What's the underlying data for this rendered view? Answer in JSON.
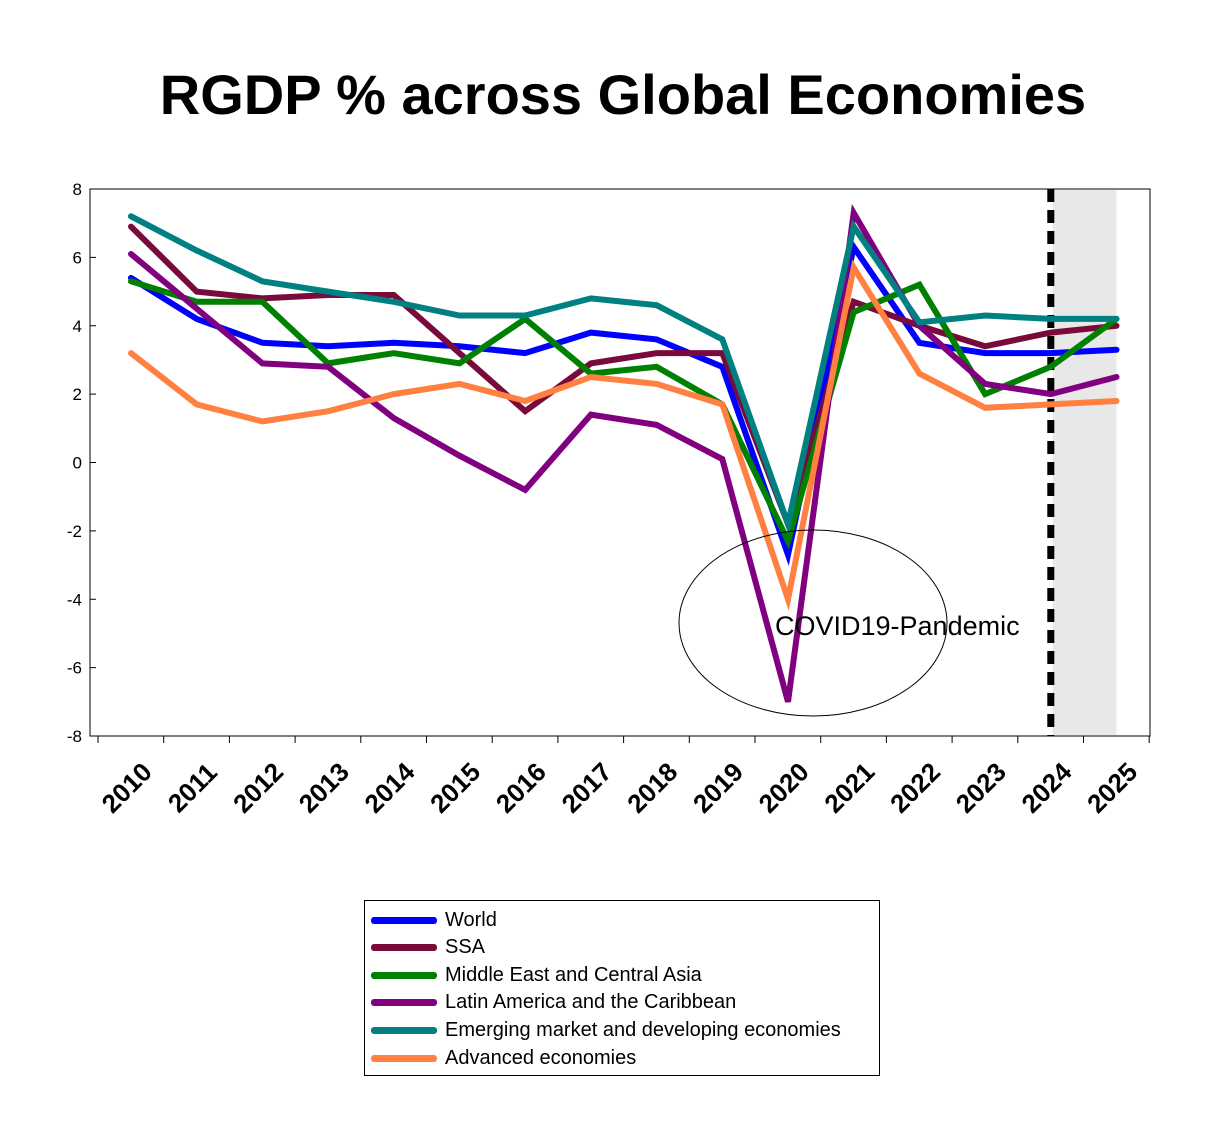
{
  "chart_data": {
    "type": "line",
    "title": "RGDP % across Global Economies",
    "xlabel": "",
    "ylabel": "",
    "x": [
      "2010",
      "2011",
      "2012",
      "2013",
      "2014",
      "2015",
      "2016",
      "2017",
      "2018",
      "2019",
      "2020",
      "2021",
      "2022",
      "2023",
      "2024",
      "2025"
    ],
    "ylim": [
      -8,
      8
    ],
    "yticks": [
      "8",
      "6",
      "4",
      "2",
      "0",
      "-2",
      "-4",
      "-6",
      "-8"
    ],
    "grid": false,
    "legend_position": "bottom",
    "shaded_region": {
      "from": "2024",
      "to": "2025",
      "color": "#e8e8e8"
    },
    "annotation": {
      "text": "COVID19-Pandemic",
      "near": "2020"
    },
    "series": [
      {
        "name": "World",
        "color": "#0000ff",
        "values": [
          5.4,
          4.2,
          3.5,
          3.4,
          3.5,
          3.4,
          3.2,
          3.8,
          3.6,
          2.8,
          -2.7,
          6.3,
          3.5,
          3.2,
          3.2,
          3.3
        ]
      },
      {
        "name": "SSA",
        "color": "#7b0a3c",
        "values": [
          6.9,
          5.0,
          4.8,
          4.9,
          4.9,
          3.2,
          1.5,
          2.9,
          3.2,
          3.2,
          -1.8,
          4.7,
          4.0,
          3.4,
          3.8,
          4.0
        ]
      },
      {
        "name": "Middle East and Central Asia",
        "color": "#008000",
        "values": [
          5.3,
          4.7,
          4.7,
          2.9,
          3.2,
          2.9,
          4.2,
          2.6,
          2.8,
          1.7,
          -2.3,
          4.4,
          5.2,
          2.0,
          2.8,
          4.2
        ]
      },
      {
        "name": "Latin America and the Caribbean",
        "color": "#800080",
        "values": [
          6.1,
          4.5,
          2.9,
          2.8,
          1.3,
          0.2,
          -0.8,
          1.4,
          1.1,
          0.1,
          -7.0,
          7.3,
          4.0,
          2.3,
          2.0,
          2.5
        ]
      },
      {
        "name": "Emerging market and developing economies",
        "color": "#008080",
        "values": [
          7.2,
          6.2,
          5.3,
          5.0,
          4.7,
          4.3,
          4.3,
          4.8,
          4.6,
          3.6,
          -1.8,
          6.9,
          4.1,
          4.3,
          4.2,
          4.2
        ]
      },
      {
        "name": "Advanced economies",
        "color": "#ff8040",
        "values": [
          3.2,
          1.7,
          1.2,
          1.5,
          2.0,
          2.3,
          1.8,
          2.5,
          2.3,
          1.7,
          -4.0,
          5.7,
          2.6,
          1.6,
          1.7,
          1.8
        ]
      }
    ]
  }
}
